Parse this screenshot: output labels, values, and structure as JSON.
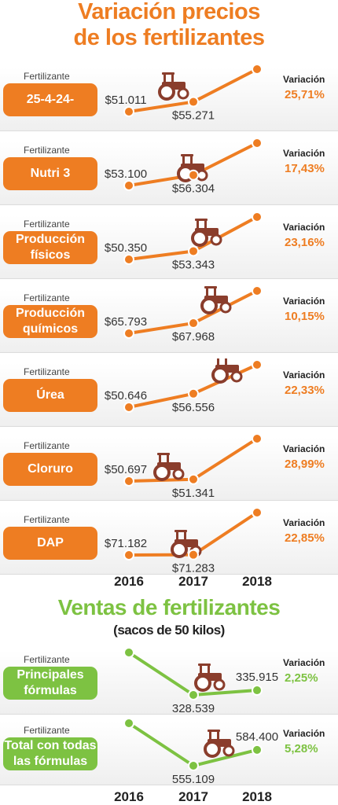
{
  "header": {
    "title_line1": "Variación precios",
    "title_line2": "de los fertilizantes"
  },
  "colors": {
    "orange": "#ee7d22",
    "green": "#7dc242"
  },
  "years": [
    "2016",
    "2017",
    "2018"
  ],
  "prices": {
    "field_label": "Fertilizante",
    "variation_label": "Variación",
    "icon": "tractor-icon",
    "rows": [
      {
        "name": "25-4-24-",
        "values": [
          "$51.011",
          "$55.271",
          "$69.479"
        ],
        "variation": "25,71%"
      },
      {
        "name": "Nutri 3",
        "values": [
          "$53.100",
          "$56.304",
          "$66.119"
        ],
        "variation": "17,43%"
      },
      {
        "name": "Producción físicos",
        "values": [
          "$50.350",
          "$53.343",
          "$65.697"
        ],
        "variation": "23,16%"
      },
      {
        "name": "Producción químicos",
        "values": [
          "$65.793",
          "$67.968",
          "$74.865"
        ],
        "variation": "10,15%"
      },
      {
        "name": "Úrea",
        "values": [
          "$50.646",
          "$56.556",
          "$69.186"
        ],
        "variation": "22,33%"
      },
      {
        "name": "Cloruro",
        "values": [
          "$50.697",
          "$51.341",
          "$66.226"
        ],
        "variation": "28,99%"
      },
      {
        "name": "DAP",
        "values": [
          "$71.182",
          "$71.283",
          "$87.570"
        ],
        "variation": "22,85%"
      }
    ]
  },
  "sales": {
    "title": "Ventas de fertilizantes",
    "subtitle": "(sacos de 50 kilos)",
    "field_label": "Fertilizante",
    "variation_label": "Variación",
    "rows": [
      {
        "name": "Principales fórmulas",
        "values": [
          "395.402",
          "328.539",
          "335.915"
        ],
        "variation": "2,25%"
      },
      {
        "name": "Total con todas las fórmulas",
        "values": [
          "633.734",
          "555.109",
          "584.400"
        ],
        "variation": "5,28%"
      }
    ]
  },
  "chart_data": [
    {
      "type": "line",
      "title": "Variación precios de los fertilizantes",
      "x": [
        2016,
        2017,
        2018
      ],
      "series": [
        {
          "name": "25-4-24-",
          "values": [
            51011,
            55271,
            69479
          ]
        },
        {
          "name": "Nutri 3",
          "values": [
            53100,
            56304,
            66119
          ]
        },
        {
          "name": "Producción físicos",
          "values": [
            50350,
            53343,
            65697
          ]
        },
        {
          "name": "Producción químicos",
          "values": [
            65793,
            67968,
            74865
          ]
        },
        {
          "name": "Úrea",
          "values": [
            50646,
            56556,
            69186
          ]
        },
        {
          "name": "Cloruro",
          "values": [
            50697,
            51341,
            66226
          ]
        },
        {
          "name": "DAP",
          "values": [
            71182,
            71283,
            87570
          ]
        }
      ]
    },
    {
      "type": "line",
      "title": "Ventas de fertilizantes",
      "subtitle": "(sacos de 50 kilos)",
      "x": [
        2016,
        2017,
        2018
      ],
      "series": [
        {
          "name": "Principales fórmulas",
          "values": [
            395402,
            328539,
            335915
          ]
        },
        {
          "name": "Total con todas las fórmulas",
          "values": [
            633734,
            555109,
            584400
          ]
        }
      ]
    }
  ]
}
